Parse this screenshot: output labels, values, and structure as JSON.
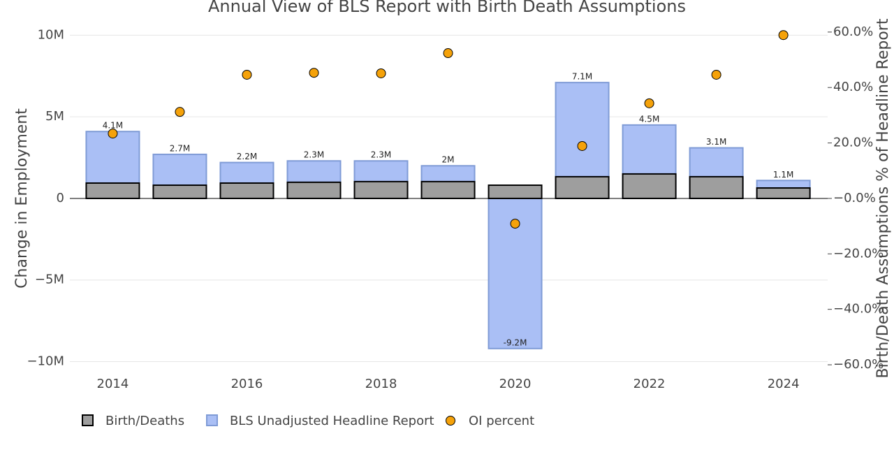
{
  "chart_data": {
    "type": "bar",
    "title": "Annual View of BLS Report with Birth Death Assumptions",
    "y_label": "Change in Employment",
    "y2_label": "Birth/Death Assumptions % of Headline Report",
    "x": [
      2014,
      2015,
      2016,
      2017,
      2018,
      2019,
      2020,
      2021,
      2022,
      2023,
      2024
    ],
    "xlim": [
      2013.36,
      2024.66
    ],
    "xticks": [
      2014,
      2016,
      2018,
      2020,
      2022,
      2024
    ],
    "ylim": [
      -10450000,
      10960000
    ],
    "yticks": [
      {
        "value": -10000000,
        "label": "−10M"
      },
      {
        "value": -5000000,
        "label": "−5M"
      },
      0,
      {
        "value": 5000000,
        "label": "5M"
      },
      {
        "value": 10000000,
        "label": "10M"
      }
    ],
    "y2lim": [
      -61.5,
      64.5
    ],
    "y2ticks": [
      {
        "value": -60,
        "label": "−60.0%"
      },
      {
        "value": -40,
        "label": "−40.0%"
      },
      {
        "value": -20,
        "label": "−20.0%"
      },
      {
        "value": 0,
        "label": "−0.0%"
      },
      {
        "value": 20,
        "label": "20.0%"
      },
      {
        "value": 40,
        "label": "40.0%"
      },
      {
        "value": 60,
        "label": "60.0%"
      }
    ],
    "grid": true,
    "series": [
      {
        "name": "Birth/Deaths",
        "type": "bar",
        "color": "#9e9e9e",
        "stroke": "#000000",
        "values": [
          940000,
          810000,
          940000,
          990000,
          1030000,
          1030000,
          810000,
          1330000,
          1500000,
          1330000,
          640000
        ]
      },
      {
        "name": "BLS Unadjusted Headline Report",
        "type": "bar",
        "color": "#aabff5",
        "stroke": "#7f9bd6",
        "values": [
          4100000,
          2700000,
          2200000,
          2300000,
          2300000,
          2000000,
          -9200000,
          7100000,
          4500000,
          3100000,
          1100000
        ],
        "value_labels": [
          "4.1M",
          "2.7M",
          "2.2M",
          "2.3M",
          "2.3M",
          "2M",
          "-9.2M",
          "7.1M",
          "4.5M",
          "3.1M",
          "1.1M"
        ]
      },
      {
        "name": "OI percent",
        "type": "scatter",
        "axis": "y2",
        "color": "#f5a20a",
        "stroke": "#000000",
        "values": [
          23.4,
          31.2,
          44.6,
          45.3,
          45.1,
          52.4,
          -9.1,
          18.9,
          34.3,
          44.6,
          58.9
        ]
      }
    ]
  }
}
